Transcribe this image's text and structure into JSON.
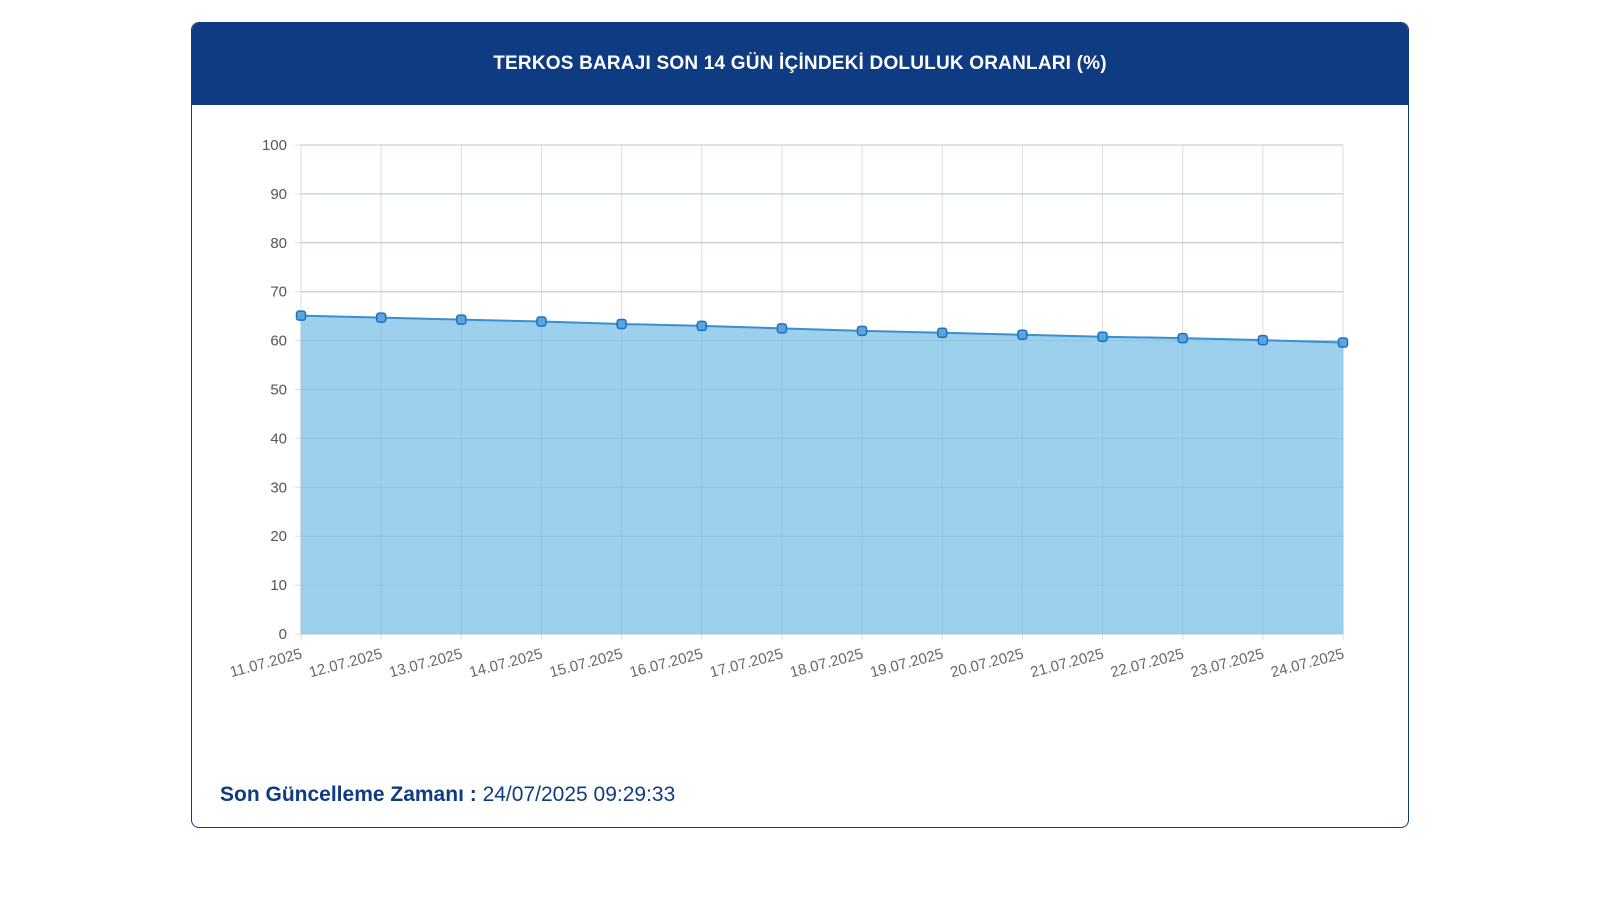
{
  "header": {
    "title": "TERKOS BARAJI SON 14 GÜN İÇİNDEKİ DOLULUK ORANLARI (%)"
  },
  "footer": {
    "label": "Son Güncelleme Zamanı :",
    "value": "24/07/2025 09:29:33"
  },
  "colors": {
    "header_bg": "#0f3b83",
    "fill": "#9dd0ec",
    "line": "#3a8fd0",
    "marker": "#1f6fc0",
    "grid": "#dcdcdc"
  },
  "chart_data": {
    "type": "area",
    "title": "TERKOS BARAJI SON 14 GÜN İÇİNDEKİ DOLULUK ORANLARI (%)",
    "xlabel": "",
    "ylabel": "",
    "ylim": [
      0,
      100
    ],
    "yticks": [
      0,
      10,
      20,
      30,
      40,
      50,
      60,
      70,
      80,
      90,
      100
    ],
    "grid": true,
    "x": [
      "11.07.2025",
      "12.07.2025",
      "13.07.2025",
      "14.07.2025",
      "15.07.2025",
      "16.07.2025",
      "17.07.2025",
      "18.07.2025",
      "19.07.2025",
      "20.07.2025",
      "21.07.2025",
      "22.07.2025",
      "23.07.2025",
      "24.07.2025"
    ],
    "series": [
      {
        "values": [
          65.1,
          64.7,
          64.3,
          63.9,
          63.4,
          63.0,
          62.5,
          62.0,
          61.6,
          61.2,
          60.8,
          60.5,
          60.1,
          59.6
        ]
      }
    ]
  }
}
